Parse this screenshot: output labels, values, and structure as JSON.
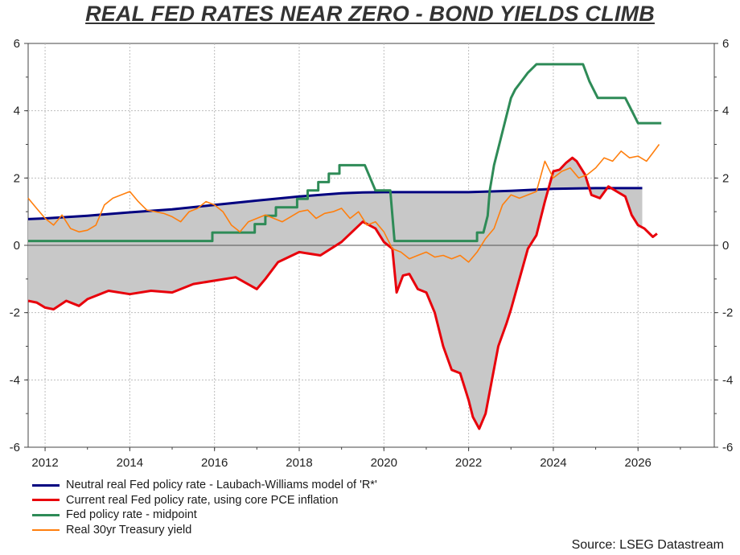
{
  "chart_data": {
    "type": "line",
    "title": "REAL FED RATES NEAR ZERO - BOND YIELDS CLIMB",
    "source": "Source: LSEG Datastream",
    "xlim": [
      2011.6,
      2027.8
    ],
    "ylim": [
      -6,
      6
    ],
    "x_ticks": [
      "2012",
      "2014",
      "2016",
      "2018",
      "2020",
      "2022",
      "2024",
      "2026"
    ],
    "y_ticks_left": [
      "6",
      "4",
      "2",
      "0",
      "-2",
      "-4",
      "-6"
    ],
    "y_ticks_right": [
      "6",
      "4",
      "2",
      "0",
      "-2",
      "-4",
      "-6"
    ],
    "grid": true,
    "legend_position": "bottom-left",
    "shaded_area": "between neutral real rate and current real Fed policy rate",
    "series": [
      {
        "name": "Neutral real Fed policy rate - Laubach-Williams model of 'R*'",
        "color": "#000080",
        "points": [
          [
            2011.6,
            0.78
          ],
          [
            2012.0,
            0.8
          ],
          [
            2013.0,
            0.88
          ],
          [
            2014.0,
            0.98
          ],
          [
            2015.0,
            1.07
          ],
          [
            2016.0,
            1.2
          ],
          [
            2017.0,
            1.33
          ],
          [
            2018.0,
            1.45
          ],
          [
            2018.5,
            1.5
          ],
          [
            2019.0,
            1.55
          ],
          [
            2019.5,
            1.57
          ],
          [
            2020.0,
            1.58
          ],
          [
            2021.0,
            1.58
          ],
          [
            2022.0,
            1.58
          ],
          [
            2023.0,
            1.62
          ],
          [
            2024.0,
            1.68
          ],
          [
            2025.0,
            1.7
          ],
          [
            2026.1,
            1.7
          ]
        ]
      },
      {
        "name": "Current real Fed policy rate, using core PCE inflation",
        "color": "#e8000b",
        "points": [
          [
            2011.6,
            -1.65
          ],
          [
            2011.8,
            -1.7
          ],
          [
            2012.0,
            -1.85
          ],
          [
            2012.2,
            -1.9
          ],
          [
            2012.5,
            -1.65
          ],
          [
            2012.8,
            -1.8
          ],
          [
            2013.0,
            -1.6
          ],
          [
            2013.5,
            -1.35
          ],
          [
            2014.0,
            -1.45
          ],
          [
            2014.5,
            -1.35
          ],
          [
            2015.0,
            -1.4
          ],
          [
            2015.5,
            -1.15
          ],
          [
            2016.0,
            -1.05
          ],
          [
            2016.5,
            -0.95
          ],
          [
            2017.0,
            -1.3
          ],
          [
            2017.2,
            -1.0
          ],
          [
            2017.5,
            -0.5
          ],
          [
            2018.0,
            -0.2
          ],
          [
            2018.5,
            -0.3
          ],
          [
            2019.0,
            0.1
          ],
          [
            2019.5,
            0.7
          ],
          [
            2019.8,
            0.5
          ],
          [
            2020.0,
            0.1
          ],
          [
            2020.2,
            -0.1
          ],
          [
            2020.3,
            -1.4
          ],
          [
            2020.45,
            -0.9
          ],
          [
            2020.6,
            -0.85
          ],
          [
            2020.8,
            -1.3
          ],
          [
            2021.0,
            -1.4
          ],
          [
            2021.2,
            -2.0
          ],
          [
            2021.4,
            -3.0
          ],
          [
            2021.6,
            -3.7
          ],
          [
            2021.8,
            -3.8
          ],
          [
            2022.0,
            -4.6
          ],
          [
            2022.1,
            -5.1
          ],
          [
            2022.25,
            -5.45
          ],
          [
            2022.4,
            -5.0
          ],
          [
            2022.55,
            -4.0
          ],
          [
            2022.7,
            -3.0
          ],
          [
            2022.9,
            -2.3
          ],
          [
            2023.0,
            -1.9
          ],
          [
            2023.2,
            -1.0
          ],
          [
            2023.4,
            -0.1
          ],
          [
            2023.6,
            0.3
          ],
          [
            2023.8,
            1.3
          ],
          [
            2024.0,
            2.2
          ],
          [
            2024.15,
            2.25
          ],
          [
            2024.3,
            2.45
          ],
          [
            2024.45,
            2.6
          ],
          [
            2024.55,
            2.5
          ],
          [
            2024.75,
            2.1
          ],
          [
            2024.9,
            1.5
          ],
          [
            2025.1,
            1.4
          ],
          [
            2025.3,
            1.75
          ],
          [
            2025.5,
            1.6
          ],
          [
            2025.7,
            1.45
          ],
          [
            2025.85,
            0.9
          ],
          [
            2026.0,
            0.6
          ],
          [
            2026.15,
            0.5
          ],
          [
            2026.35,
            0.25
          ],
          [
            2026.45,
            0.35
          ]
        ]
      },
      {
        "name": "Fed policy rate - midpoint",
        "color": "#2e8b57",
        "points": [
          [
            2011.6,
            0.13
          ],
          [
            2015.95,
            0.13
          ],
          [
            2015.95,
            0.38
          ],
          [
            2016.95,
            0.38
          ],
          [
            2016.95,
            0.63
          ],
          [
            2017.2,
            0.63
          ],
          [
            2017.2,
            0.88
          ],
          [
            2017.45,
            0.88
          ],
          [
            2017.45,
            1.13
          ],
          [
            2017.95,
            1.13
          ],
          [
            2017.95,
            1.38
          ],
          [
            2018.2,
            1.38
          ],
          [
            2018.2,
            1.63
          ],
          [
            2018.45,
            1.63
          ],
          [
            2018.45,
            1.88
          ],
          [
            2018.7,
            1.88
          ],
          [
            2018.7,
            2.13
          ],
          [
            2018.95,
            2.13
          ],
          [
            2018.95,
            2.38
          ],
          [
            2019.55,
            2.38
          ],
          [
            2019.8,
            1.63
          ],
          [
            2020.15,
            1.63
          ],
          [
            2020.25,
            0.13
          ],
          [
            2022.2,
            0.13
          ],
          [
            2022.2,
            0.38
          ],
          [
            2022.35,
            0.38
          ],
          [
            2022.45,
            0.88
          ],
          [
            2022.5,
            1.63
          ],
          [
            2022.6,
            2.38
          ],
          [
            2022.75,
            3.13
          ],
          [
            2022.9,
            3.88
          ],
          [
            2023.0,
            4.38
          ],
          [
            2023.1,
            4.63
          ],
          [
            2023.25,
            4.88
          ],
          [
            2023.4,
            5.13
          ],
          [
            2023.6,
            5.38
          ],
          [
            2024.7,
            5.38
          ],
          [
            2024.85,
            4.88
          ],
          [
            2024.95,
            4.63
          ],
          [
            2025.05,
            4.38
          ],
          [
            2025.7,
            4.38
          ],
          [
            2025.8,
            4.13
          ],
          [
            2025.9,
            3.88
          ],
          [
            2026.0,
            3.63
          ],
          [
            2026.55,
            3.63
          ]
        ]
      },
      {
        "name": "Real 30yr Treasury yield",
        "color": "#ff7f0e",
        "points": [
          [
            2011.6,
            1.4
          ],
          [
            2011.8,
            1.1
          ],
          [
            2012.0,
            0.8
          ],
          [
            2012.2,
            0.6
          ],
          [
            2012.4,
            0.9
          ],
          [
            2012.6,
            0.5
          ],
          [
            2012.8,
            0.4
          ],
          [
            2013.0,
            0.45
          ],
          [
            2013.2,
            0.6
          ],
          [
            2013.4,
            1.2
          ],
          [
            2013.6,
            1.4
          ],
          [
            2013.8,
            1.5
          ],
          [
            2014.0,
            1.6
          ],
          [
            2014.2,
            1.3
          ],
          [
            2014.4,
            1.05
          ],
          [
            2014.6,
            1.0
          ],
          [
            2014.8,
            0.95
          ],
          [
            2015.0,
            0.85
          ],
          [
            2015.2,
            0.7
          ],
          [
            2015.4,
            1.0
          ],
          [
            2015.6,
            1.1
          ],
          [
            2015.8,
            1.3
          ],
          [
            2016.0,
            1.2
          ],
          [
            2016.2,
            1.0
          ],
          [
            2016.4,
            0.6
          ],
          [
            2016.6,
            0.4
          ],
          [
            2016.8,
            0.7
          ],
          [
            2017.0,
            0.8
          ],
          [
            2017.2,
            0.9
          ],
          [
            2017.4,
            0.8
          ],
          [
            2017.6,
            0.7
          ],
          [
            2017.8,
            0.85
          ],
          [
            2018.0,
            1.0
          ],
          [
            2018.2,
            1.05
          ],
          [
            2018.4,
            0.8
          ],
          [
            2018.6,
            0.95
          ],
          [
            2018.8,
            1.0
          ],
          [
            2019.0,
            1.1
          ],
          [
            2019.2,
            0.8
          ],
          [
            2019.4,
            1.0
          ],
          [
            2019.6,
            0.6
          ],
          [
            2019.8,
            0.7
          ],
          [
            2020.0,
            0.4
          ],
          [
            2020.2,
            -0.1
          ],
          [
            2020.4,
            -0.2
          ],
          [
            2020.6,
            -0.4
          ],
          [
            2020.8,
            -0.3
          ],
          [
            2021.0,
            -0.2
          ],
          [
            2021.2,
            -0.35
          ],
          [
            2021.4,
            -0.3
          ],
          [
            2021.6,
            -0.4
          ],
          [
            2021.8,
            -0.3
          ],
          [
            2022.0,
            -0.5
          ],
          [
            2022.2,
            -0.2
          ],
          [
            2022.4,
            0.2
          ],
          [
            2022.6,
            0.5
          ],
          [
            2022.8,
            1.2
          ],
          [
            2023.0,
            1.5
          ],
          [
            2023.2,
            1.4
          ],
          [
            2023.4,
            1.5
          ],
          [
            2023.6,
            1.6
          ],
          [
            2023.8,
            2.5
          ],
          [
            2024.0,
            2.0
          ],
          [
            2024.2,
            2.2
          ],
          [
            2024.4,
            2.3
          ],
          [
            2024.6,
            2.0
          ],
          [
            2024.8,
            2.1
          ],
          [
            2025.0,
            2.3
          ],
          [
            2025.2,
            2.6
          ],
          [
            2025.4,
            2.5
          ],
          [
            2025.6,
            2.8
          ],
          [
            2025.8,
            2.6
          ],
          [
            2026.0,
            2.65
          ],
          [
            2026.2,
            2.5
          ],
          [
            2026.35,
            2.75
          ],
          [
            2026.5,
            3.0
          ]
        ]
      }
    ]
  }
}
